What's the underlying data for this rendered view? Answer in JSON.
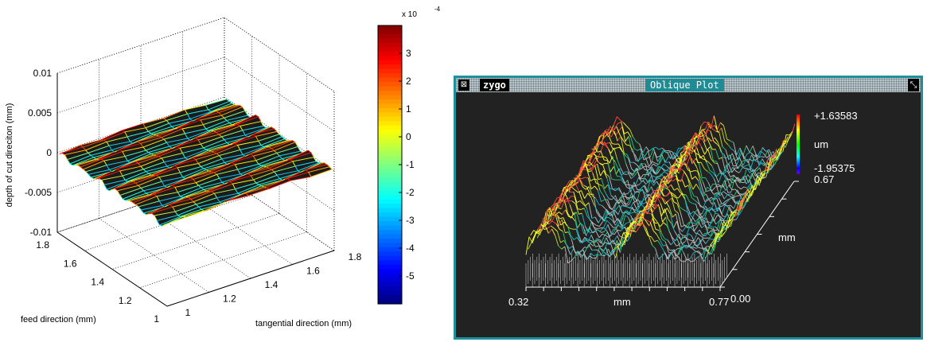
{
  "chart_data": [
    {
      "type": "surface",
      "title": "",
      "xlabel": "tangential direction (mm)",
      "ylabel": "feed direction (mm)",
      "zlabel": "depth of cut direciton (mm)",
      "x_ticks": [
        "1",
        "1.2",
        "1.4",
        "1.6",
        "1.8"
      ],
      "y_ticks": [
        "1",
        "1.2",
        "1.4",
        "1.6",
        "1.8"
      ],
      "z_ticks": [
        "-0.01",
        "-0.005",
        "0",
        "0.005",
        "0.01"
      ],
      "xlim": [
        1,
        1.8
      ],
      "ylim": [
        1,
        1.8
      ],
      "zlim": [
        -0.01,
        0.01
      ],
      "grid": true,
      "surface_rows": 8,
      "surface_cols": 40,
      "colorbar": {
        "multiplier": "x 10",
        "exponent": "-4",
        "ticks": [
          "3",
          "2",
          "1",
          "0",
          "-1",
          "-2",
          "-3",
          "-4",
          "-5"
        ],
        "range": [
          -6,
          4
        ],
        "colormap": "jet"
      }
    },
    {
      "type": "surface",
      "title": "Oblique Plot",
      "x_ticks": [
        "0.32",
        "0.77"
      ],
      "xlabel": "mm",
      "y_ticks": [
        "0.00",
        "0.67"
      ],
      "ylabel": "mm",
      "colorbar": {
        "max": "+1.63583",
        "min": "-1.95375",
        "unit": "um",
        "colormap": "rainbow"
      }
    }
  ],
  "window": {
    "brand": "zygo",
    "title": "Oblique Plot",
    "menu_icon": "window-menu-icon",
    "resize_icon": "resize-icon"
  }
}
